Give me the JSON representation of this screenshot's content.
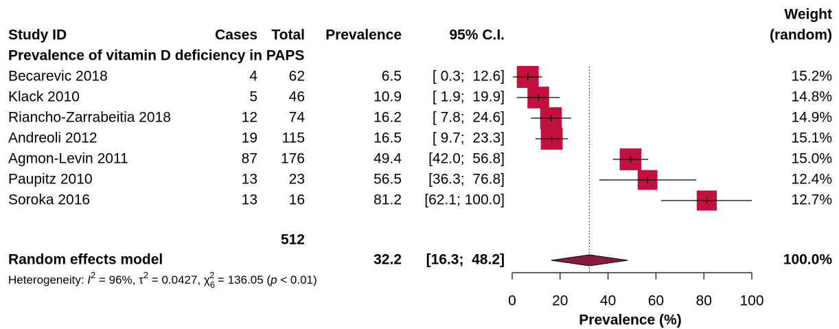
{
  "chart_data": {
    "type": "forest",
    "headers": {
      "weight_top": "Weight",
      "weight_bottom": "(random)",
      "study": "Study ID",
      "cases": "Cases",
      "total": "Total",
      "prevalence": "Prevalence",
      "ci": "95% C.I."
    },
    "subgroup": "Prevalence of vitamin D deficiency in PAPS",
    "studies": [
      "Becarevic 2018",
      "Klack 2010",
      "Riancho-Zarrabeitia 2018",
      "Andreoli 2012",
      "Agmon-Levin 2011",
      "Paupitz 2010",
      "Soroka 2016"
    ],
    "cases": [
      4,
      5,
      12,
      19,
      87,
      13,
      13
    ],
    "totals": [
      62,
      46,
      74,
      115,
      176,
      23,
      16
    ],
    "prevalence": [
      6.5,
      10.9,
      16.2,
      16.5,
      49.4,
      56.5,
      81.2
    ],
    "ci_lower": [
      0.3,
      1.9,
      7.8,
      9.7,
      42.0,
      36.3,
      62.1
    ],
    "ci_upper": [
      12.6,
      19.9,
      24.6,
      23.3,
      56.8,
      76.8,
      100.0
    ],
    "ci_labels": [
      "[ 0.3;  12.6]",
      "[ 1.9;  19.9]",
      "[ 7.8;  24.6]",
      "[ 9.7;  23.3]",
      "[42.0;  56.8]",
      "[36.3;  76.8]",
      "[62.1; 100.0]"
    ],
    "weights": [
      15.2,
      14.8,
      14.9,
      15.1,
      15.0,
      12.4,
      12.7
    ],
    "weight_labels": [
      "15.2%",
      "14.8%",
      "14.9%",
      "15.1%",
      "15.0%",
      "12.4%",
      "12.7%"
    ],
    "total_n": 512,
    "pooled": {
      "label": "Random effects model",
      "estimate": 32.2,
      "lower": 16.3,
      "upper": 48.2,
      "ci_label": "[16.3;  48.2]",
      "weight": 100.0,
      "weight_label": "100.0%"
    },
    "heterogeneity": [
      "Heterogeneity: ",
      "I",
      "2",
      " = 96%, ",
      "τ",
      "2",
      " = 0.0427, ",
      "χ",
      "6",
      "2",
      " = 136.05 (",
      "p",
      " < 0.01)"
    ],
    "square_color": "#c4103f",
    "diamond_color": "#8b1a3a",
    "xlim": [
      0,
      100
    ],
    "xticks": [
      0,
      20,
      40,
      60,
      80,
      100
    ],
    "xlabel": "Prevalence (%)"
  }
}
